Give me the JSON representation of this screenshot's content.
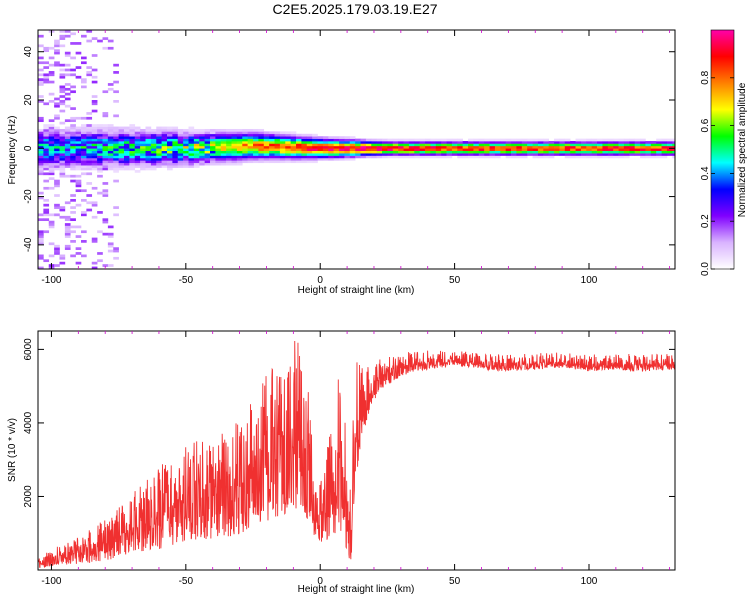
{
  "title": "C2E5.2025.179.03.19.E27",
  "colors": {
    "line": "#f03030",
    "axis": "#000000",
    "tick_minor": "#cc00cc"
  },
  "chart_data": [
    {
      "type": "heatmap",
      "xlabel": "Height of straight line (km)",
      "ylabel": "Frequency (Hz)",
      "xlim": [
        -105,
        132
      ],
      "ylim": [
        -50,
        49
      ],
      "xticks": [
        -100,
        -50,
        0,
        50,
        100
      ],
      "yticks": [
        -40,
        -20,
        0,
        20,
        40
      ],
      "colorbar": {
        "label": "Normalized spectral amplitude",
        "range": [
          0,
          1
        ],
        "ticks": [
          "0.0",
          "0.2",
          "0.4",
          "0.6",
          "0.8"
        ],
        "colormap": [
          "#ffffff",
          "#d9b3ff",
          "#8000ff",
          "#0000ff",
          "#00ffff",
          "#00ff00",
          "#ffff00",
          "#ff8000",
          "#ff0000",
          "#ff00aa"
        ]
      },
      "description_points": [
        {
          "x": -100,
          "peak_freq": 0,
          "max_amp": 0.45,
          "spread_hz": 6
        },
        {
          "x": -75,
          "peak_freq": 0,
          "max_amp": 0.5,
          "spread_hz": 6
        },
        {
          "x": -50,
          "peak_freq": 0,
          "max_amp": 0.6,
          "spread_hz": 5
        },
        {
          "x": -25,
          "peak_freq": 1,
          "max_amp": 0.8,
          "spread_hz": 4
        },
        {
          "x": 0,
          "peak_freq": 0,
          "max_amp": 0.95,
          "spread_hz": 3
        },
        {
          "x": 25,
          "peak_freq": 0,
          "max_amp": 0.95,
          "spread_hz": 2
        },
        {
          "x": 50,
          "peak_freq": 0,
          "max_amp": 0.9,
          "spread_hz": 2
        },
        {
          "x": 100,
          "peak_freq": 0,
          "max_amp": 0.9,
          "spread_hz": 2
        },
        {
          "x": 130,
          "peak_freq": 0,
          "max_amp": 0.9,
          "spread_hz": 2
        }
      ]
    },
    {
      "type": "line",
      "xlabel": "Height of straight line (km)",
      "ylabel": "SNR (10 * v/v)",
      "xlim": [
        -105,
        132
      ],
      "ylim": [
        0,
        6500
      ],
      "xticks": [
        -100,
        -50,
        0,
        50,
        100
      ],
      "yticks": [
        2000,
        4000,
        6000
      ],
      "series": [
        {
          "x": [
            -105,
            -100,
            -95,
            -90,
            -85,
            -80,
            -75,
            -70,
            -65,
            -60,
            -55,
            -50,
            -45,
            -40,
            -35,
            -30,
            -25,
            -20,
            -18,
            -15,
            -12,
            -10,
            -8,
            -5,
            -2,
            0,
            3,
            5,
            8,
            10,
            11,
            12,
            13,
            15,
            18,
            20,
            25,
            30,
            35,
            40,
            50,
            60,
            70,
            80,
            90,
            100,
            110,
            120,
            132
          ],
          "y": [
            150,
            250,
            350,
            450,
            550,
            700,
            900,
            1100,
            1250,
            1400,
            1600,
            1750,
            1900,
            2000,
            2200,
            2300,
            2500,
            2800,
            3200,
            3100,
            2900,
            3300,
            3500,
            2800,
            1800,
            1500,
            1700,
            1900,
            2200,
            1200,
            300,
            1500,
            3200,
            4200,
            4700,
            5000,
            5300,
            5500,
            5600,
            5650,
            5700,
            5600,
            5550,
            5600,
            5650,
            5550,
            5600,
            5550,
            5600
          ],
          "amp_low": [
            100,
            150,
            200,
            300,
            350,
            450,
            550,
            650,
            750,
            850,
            950,
            1000,
            1100,
            1200,
            1300,
            1350,
            1450,
            1600,
            1800,
            1700,
            1500,
            1800,
            1900,
            1500,
            1000,
            800,
            900,
            1000,
            1200,
            700,
            300,
            800,
            1200,
            800,
            500,
            400,
            300,
            250,
            200,
            200,
            150,
            150,
            150,
            150,
            150,
            150,
            150,
            150,
            150
          ],
          "amp_high": [
            200,
            300,
            400,
            500,
            600,
            750,
            900,
            1100,
            1250,
            1400,
            1500,
            1600,
            1700,
            1800,
            1900,
            2000,
            2200,
            2500,
            3000,
            2800,
            2600,
            3000,
            3000,
            2500,
            1800,
            1300,
            1700,
            3000,
            3200,
            2000,
            1800,
            3000,
            2800,
            1500,
            900,
            700,
            500,
            400,
            350,
            350,
            300,
            300,
            300,
            300,
            300,
            300,
            300,
            300,
            300
          ]
        }
      ]
    }
  ]
}
